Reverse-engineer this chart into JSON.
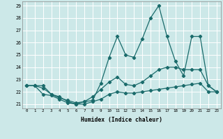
{
  "xlabel": "Humidex (Indice chaleur)",
  "xlim": [
    -0.5,
    23.5
  ],
  "ylim": [
    20.65,
    29.35
  ],
  "yticks": [
    21,
    22,
    23,
    24,
    25,
    26,
    27,
    28,
    29
  ],
  "xticks": [
    0,
    1,
    2,
    3,
    4,
    5,
    6,
    7,
    8,
    9,
    10,
    11,
    12,
    13,
    14,
    15,
    16,
    17,
    18,
    19,
    20,
    21,
    22,
    23
  ],
  "bg_color": "#cce8e8",
  "grid_color": "#ffffff",
  "line_color": "#1a6b6b",
  "series_top": [
    22.5,
    22.5,
    22.5,
    21.8,
    21.6,
    21.2,
    21.0,
    21.2,
    21.3,
    22.7,
    24.8,
    26.5,
    25.0,
    24.8,
    26.3,
    28.0,
    29.0,
    26.5,
    24.5,
    23.3,
    26.5,
    26.5,
    22.5,
    22.0
  ],
  "series_mid": [
    22.5,
    22.5,
    22.3,
    21.8,
    21.5,
    21.3,
    21.1,
    21.2,
    21.6,
    22.2,
    22.8,
    23.2,
    22.6,
    22.5,
    22.8,
    23.3,
    23.8,
    24.0,
    24.0,
    23.8,
    23.8,
    23.8,
    22.5,
    22.0
  ],
  "series_bot": [
    22.5,
    22.5,
    21.8,
    21.7,
    21.4,
    21.1,
    21.0,
    21.0,
    21.2,
    21.4,
    21.8,
    22.0,
    21.9,
    21.9,
    22.0,
    22.1,
    22.2,
    22.3,
    22.4,
    22.5,
    22.6,
    22.7,
    22.0,
    22.0
  ]
}
